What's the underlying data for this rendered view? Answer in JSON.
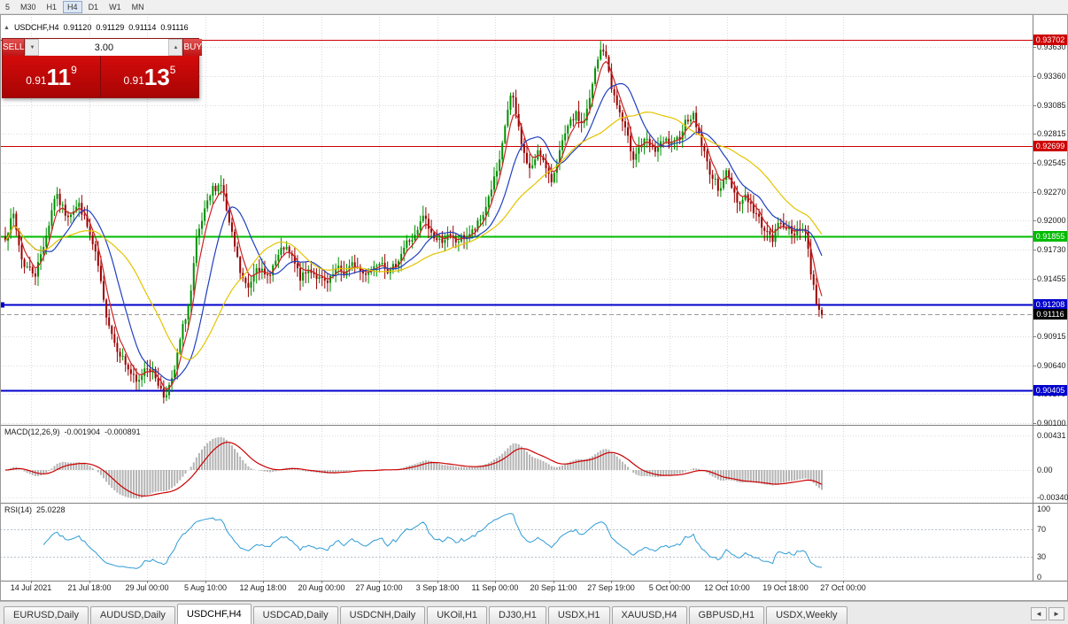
{
  "toolbar": {
    "timeframes": [
      "5",
      "M30",
      "H1",
      "H4",
      "D1",
      "W1",
      "MN"
    ],
    "active": "H4"
  },
  "chart": {
    "header": {
      "collapse_icon": "▲",
      "symbol": "USDCHF,H4",
      "open": "0.91120",
      "high": "0.91129",
      "low": "0.91114",
      "close": "0.91116"
    }
  },
  "trade_panel": {
    "sell_label": "SELL",
    "buy_label": "BUY",
    "volume": "3.00",
    "volume_down_icon": "▼",
    "volume_up_icon": "▲",
    "sell_price": {
      "prefix": "0.91",
      "big": "11",
      "sup": "9"
    },
    "buy_price": {
      "prefix": "0.91",
      "big": "13",
      "sup": "5"
    }
  },
  "price_scale": {
    "ticks": [
      "0.93630",
      "0.93360",
      "0.93085",
      "0.92815",
      "0.92545",
      "0.92270",
      "0.92000",
      "0.91730",
      "0.91455",
      "0.90915",
      "0.90640",
      "0.90370",
      "0.90100"
    ],
    "badges": [
      {
        "value": "0.93702",
        "color": "#cc0000"
      },
      {
        "value": "0.92699",
        "color": "#cc0000"
      },
      {
        "value": "0.91855",
        "color": "#00bb00"
      },
      {
        "value": "0.91208",
        "color": "#0000cc"
      },
      {
        "value": "0.91116",
        "color": "#000000"
      },
      {
        "value": "0.90405",
        "color": "#0000cc"
      }
    ]
  },
  "macd_panel": {
    "label": "MACD(12,26,9)",
    "main_value": "-0.001904",
    "signal_value": "-0.000891",
    "scale": [
      "0.00431",
      "0.00",
      "-0.00340"
    ]
  },
  "rsi_panel": {
    "label": "RSI(14)",
    "value": "25.0228",
    "scale": [
      "100",
      "70",
      "30",
      "0"
    ]
  },
  "time_axis": [
    "14 Jul 2021",
    "21 Jul 18:00",
    "29 Jul 00:00",
    "5 Aug 10:00",
    "12 Aug 18:00",
    "20 Aug 00:00",
    "27 Aug 10:00",
    "3 Sep 18:00",
    "11 Sep 00:00",
    "20 Sep 11:00",
    "27 Sep 19:00",
    "5 Oct 00:00",
    "12 Oct 10:00",
    "19 Oct 18:00",
    "27 Oct 00:00"
  ],
  "tabs": {
    "items": [
      "EURUSD,Daily",
      "AUDUSD,Daily",
      "USDCHF,H4",
      "USDCAD,Daily",
      "USDCNH,Daily",
      "UKOil,H1",
      "DJ30,H1",
      "USDX,H1",
      "XAUUSD,H4",
      "GBPUSD,H1",
      "USDX,Weekly"
    ],
    "active_index": 2,
    "left_arrow": "◄",
    "right_arrow": "►"
  },
  "chart_data": {
    "type": "candlestick",
    "symbol": "USDCHF",
    "timeframe": "H4",
    "current": {
      "open": 0.9112,
      "high": 0.91129,
      "low": 0.91114,
      "close": 0.91116
    },
    "y_range": {
      "min": 0.9008,
      "max": 0.9394
    },
    "levels": [
      {
        "price": 0.93702,
        "color": "#cc0000",
        "width": 1,
        "style": "solid"
      },
      {
        "price": 0.92699,
        "color": "#cc0000",
        "width": 1,
        "style": "solid"
      },
      {
        "price": 0.91855,
        "color": "#00bb00",
        "width": 2,
        "style": "solid"
      },
      {
        "price": 0.91208,
        "color": "#0000cc",
        "width": 2,
        "style": "solid",
        "handle": true
      },
      {
        "price": 0.90405,
        "color": "#0000cc",
        "width": 2,
        "style": "solid"
      },
      {
        "price": 0.91116,
        "color": "#999999",
        "width": 1,
        "style": "dash"
      }
    ],
    "num_candles": 300,
    "seed": 7,
    "noise": 0.0008,
    "up_color": "#009000",
    "down_color": "#990000",
    "price_path": [
      [
        0,
        0.9185
      ],
      [
        0.01,
        0.9205
      ],
      [
        0.021,
        0.916
      ],
      [
        0.037,
        0.915
      ],
      [
        0.053,
        0.9195
      ],
      [
        0.061,
        0.9225
      ],
      [
        0.075,
        0.9205
      ],
      [
        0.091,
        0.9215
      ],
      [
        0.102,
        0.919
      ],
      [
        0.113,
        0.916
      ],
      [
        0.121,
        0.912
      ],
      [
        0.134,
        0.9085
      ],
      [
        0.151,
        0.906
      ],
      [
        0.162,
        0.9045
      ],
      [
        0.172,
        0.9065
      ],
      [
        0.183,
        0.9055
      ],
      [
        0.194,
        0.9035
      ],
      [
        0.205,
        0.905
      ],
      [
        0.216,
        0.9095
      ],
      [
        0.227,
        0.913
      ],
      [
        0.234,
        0.918
      ],
      [
        0.243,
        0.9205
      ],
      [
        0.254,
        0.923
      ],
      [
        0.265,
        0.9235
      ],
      [
        0.273,
        0.92
      ],
      [
        0.281,
        0.9175
      ],
      [
        0.288,
        0.915
      ],
      [
        0.297,
        0.9135
      ],
      [
        0.308,
        0.916
      ],
      [
        0.319,
        0.9145
      ],
      [
        0.33,
        0.916
      ],
      [
        0.341,
        0.9175
      ],
      [
        0.351,
        0.9165
      ],
      [
        0.362,
        0.9145
      ],
      [
        0.373,
        0.9155
      ],
      [
        0.384,
        0.9145
      ],
      [
        0.395,
        0.914
      ],
      [
        0.406,
        0.9155
      ],
      [
        0.416,
        0.915
      ],
      [
        0.427,
        0.916
      ],
      [
        0.438,
        0.915
      ],
      [
        0.449,
        0.9155
      ],
      [
        0.46,
        0.9165
      ],
      [
        0.471,
        0.915
      ],
      [
        0.482,
        0.9165
      ],
      [
        0.492,
        0.918
      ],
      [
        0.503,
        0.9185
      ],
      [
        0.512,
        0.9205
      ],
      [
        0.52,
        0.919
      ],
      [
        0.53,
        0.918
      ],
      [
        0.541,
        0.9185
      ],
      [
        0.552,
        0.918
      ],
      [
        0.563,
        0.9185
      ],
      [
        0.574,
        0.919
      ],
      [
        0.585,
        0.9205
      ],
      [
        0.595,
        0.923
      ],
      [
        0.606,
        0.9255
      ],
      [
        0.614,
        0.93
      ],
      [
        0.62,
        0.932
      ],
      [
        0.628,
        0.929
      ],
      [
        0.636,
        0.926
      ],
      [
        0.644,
        0.9245
      ],
      [
        0.653,
        0.927
      ],
      [
        0.661,
        0.925
      ],
      [
        0.668,
        0.9235
      ],
      [
        0.677,
        0.926
      ],
      [
        0.688,
        0.9285
      ],
      [
        0.698,
        0.93
      ],
      [
        0.707,
        0.929
      ],
      [
        0.715,
        0.931
      ],
      [
        0.722,
        0.934
      ],
      [
        0.731,
        0.9365
      ],
      [
        0.738,
        0.9345
      ],
      [
        0.744,
        0.932
      ],
      [
        0.753,
        0.93
      ],
      [
        0.761,
        0.928
      ],
      [
        0.769,
        0.926
      ],
      [
        0.777,
        0.927
      ],
      [
        0.785,
        0.9275
      ],
      [
        0.794,
        0.9265
      ],
      [
        0.801,
        0.927
      ],
      [
        0.809,
        0.9275
      ],
      [
        0.818,
        0.927
      ],
      [
        0.826,
        0.928
      ],
      [
        0.834,
        0.9295
      ],
      [
        0.842,
        0.93
      ],
      [
        0.85,
        0.928
      ],
      [
        0.859,
        0.9255
      ],
      [
        0.866,
        0.924
      ],
      [
        0.874,
        0.923
      ],
      [
        0.883,
        0.9245
      ],
      [
        0.891,
        0.923
      ],
      [
        0.899,
        0.9215
      ],
      [
        0.907,
        0.9225
      ],
      [
        0.915,
        0.921
      ],
      [
        0.924,
        0.92
      ],
      [
        0.932,
        0.919
      ],
      [
        0.939,
        0.918
      ],
      [
        0.948,
        0.92
      ],
      [
        0.957,
        0.9195
      ],
      [
        0.964,
        0.9185
      ],
      [
        0.972,
        0.9195
      ],
      [
        0.98,
        0.919
      ],
      [
        0.987,
        0.915
      ],
      [
        0.993,
        0.9125
      ],
      [
        1,
        0.9112
      ]
    ],
    "moving_averages": [
      {
        "type": "ema",
        "period": 5,
        "color": "#cc2222"
      },
      {
        "type": "sma",
        "period": 14,
        "color": "#2040c0"
      },
      {
        "type": "sma",
        "period": 32,
        "color": "#e3c400"
      }
    ],
    "macd": {
      "fast": 12,
      "slow": 26,
      "signal": 9,
      "histogram_color": "#b4b4b4",
      "signal_color": "#cc0000"
    },
    "rsi": {
      "period": 14,
      "color": "#2e9bd6",
      "levels": [
        70,
        30
      ],
      "current": 25.0228
    }
  }
}
